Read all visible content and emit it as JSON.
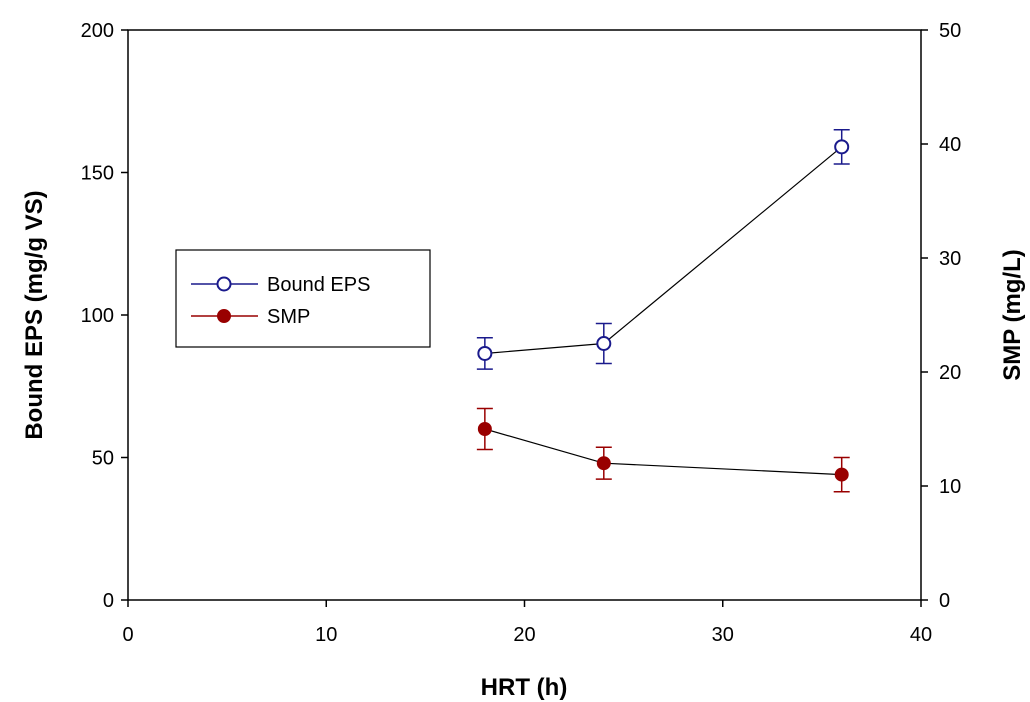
{
  "chart_data": {
    "type": "scatter",
    "xlabel": "HRT (h)",
    "ylabel": "Bound EPS (mg/g VS)",
    "y2label": "SMP (mg/L)",
    "xlim": [
      0,
      40
    ],
    "ylim": [
      0,
      200
    ],
    "y2lim": [
      0,
      50
    ],
    "x_ticks": [
      0,
      10,
      20,
      30,
      40
    ],
    "y_ticks": [
      0,
      50,
      100,
      150,
      200
    ],
    "y2_ticks": [
      0,
      10,
      20,
      30,
      40,
      50
    ],
    "grid": false,
    "legend_position": "left",
    "series": [
      {
        "name": "Bound EPS",
        "axis": "left",
        "marker": "open-circle",
        "color": "#1a1a8c",
        "x": [
          18,
          24,
          36
        ],
        "y": [
          86.5,
          90,
          159
        ],
        "error": [
          5.5,
          7,
          6
        ]
      },
      {
        "name": "SMP",
        "axis": "right",
        "marker": "filled-circle",
        "color": "#990000",
        "x": [
          18,
          24,
          36
        ],
        "y": [
          15,
          12,
          11
        ],
        "error": [
          1.8,
          1.4,
          1.5
        ]
      }
    ]
  }
}
